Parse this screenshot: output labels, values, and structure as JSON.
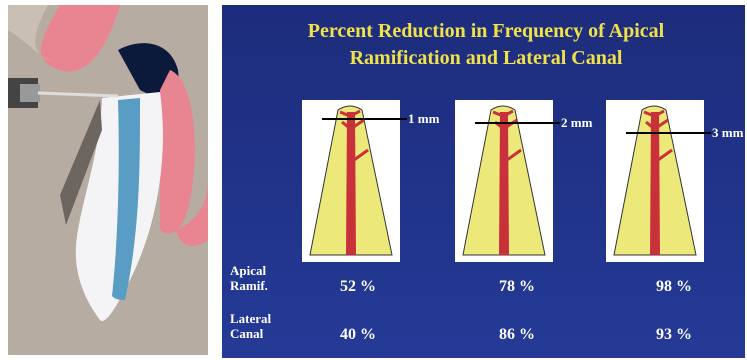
{
  "title": [
    "Percent Reduction in Frequency of Apical",
    "Ramification and Lateral Canal"
  ],
  "diagrams": [
    {
      "label": "1 mm"
    },
    {
      "label": "2 mm"
    },
    {
      "label": "3 mm"
    }
  ],
  "table": {
    "rows": [
      {
        "label": [
          "Apical",
          "Ramif."
        ],
        "cells": [
          "52 %",
          "78 %",
          "98 %"
        ]
      },
      {
        "label": [
          "Lateral",
          "Canal"
        ],
        "cells": [
          "40 %",
          "86 %",
          "93 %"
        ]
      }
    ]
  }
}
